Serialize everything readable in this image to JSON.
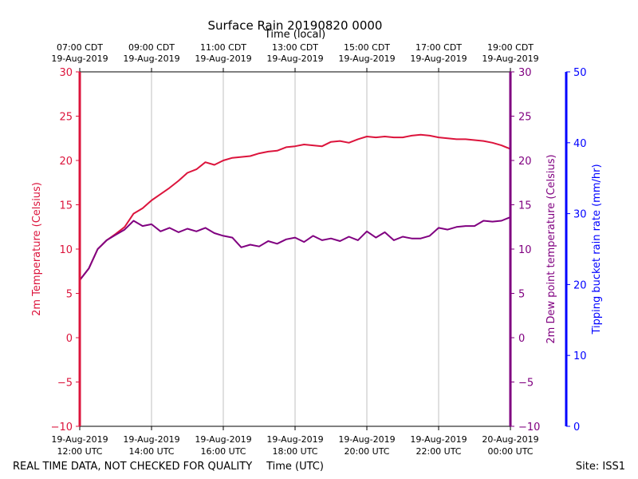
{
  "chart_data": {
    "type": "line",
    "title": "Surface Rain 20190820 0000",
    "top_axis_label": "Time (local)",
    "xlabel": "Time (UTC)",
    "footer_left": "REAL TIME DATA, NOT CHECKED FOR QUALITY",
    "footer_right": "Site: ISS1",
    "x_range_hours_utc": [
      12,
      24
    ],
    "bottom_ticks": [
      {
        "hour": 12,
        "line1": "19-Aug-2019",
        "line2": "12:00 UTC"
      },
      {
        "hour": 14,
        "line1": "19-Aug-2019",
        "line2": "14:00 UTC"
      },
      {
        "hour": 16,
        "line1": "19-Aug-2019",
        "line2": "16:00 UTC"
      },
      {
        "hour": 18,
        "line1": "19-Aug-2019",
        "line2": "18:00 UTC"
      },
      {
        "hour": 20,
        "line1": "19-Aug-2019",
        "line2": "20:00 UTC"
      },
      {
        "hour": 22,
        "line1": "19-Aug-2019",
        "line2": "22:00 UTC"
      },
      {
        "hour": 24,
        "line1": "20-Aug-2019",
        "line2": "00:00 UTC"
      }
    ],
    "top_ticks": [
      {
        "hour": 12,
        "line1": "07:00 CDT",
        "line2": "19-Aug-2019"
      },
      {
        "hour": 14,
        "line1": "09:00 CDT",
        "line2": "19-Aug-2019"
      },
      {
        "hour": 16,
        "line1": "11:00 CDT",
        "line2": "19-Aug-2019"
      },
      {
        "hour": 18,
        "line1": "13:00 CDT",
        "line2": "19-Aug-2019"
      },
      {
        "hour": 20,
        "line1": "15:00 CDT",
        "line2": "19-Aug-2019"
      },
      {
        "hour": 22,
        "line1": "17:00 CDT",
        "line2": "19-Aug-2019"
      },
      {
        "hour": 24,
        "line1": "19:00 CDT",
        "line2": "19-Aug-2019"
      }
    ],
    "axes": {
      "temperature": {
        "label": "2m Temperature (Celsius)",
        "range": [
          -10,
          30
        ],
        "ticks": [
          "−10",
          "−5",
          "0",
          "5",
          "10",
          "15",
          "20",
          "25",
          "30"
        ],
        "color": "#dc143c"
      },
      "dewpoint": {
        "label": "2m Dew point temperature (Celsius)",
        "range": [
          -10,
          30
        ],
        "ticks": [
          "−10",
          "−5",
          "0",
          "5",
          "10",
          "15",
          "20",
          "25",
          "30"
        ],
        "color": "#800080"
      },
      "rain_rate": {
        "label": "Tipping bucket rain rate (mm/hr)",
        "range": [
          0,
          50
        ],
        "ticks": [
          "0",
          "10",
          "20",
          "30",
          "40",
          "50"
        ],
        "color": "#0000ff"
      }
    },
    "series": [
      {
        "name": "2m Temperature",
        "color": "#dc143c",
        "x": [
          12.0,
          12.25,
          12.5,
          12.75,
          13.0,
          13.25,
          13.5,
          13.75,
          14.0,
          14.25,
          14.5,
          14.75,
          15.0,
          15.25,
          15.5,
          15.75,
          16.0,
          16.25,
          16.5,
          16.75,
          17.0,
          17.25,
          17.5,
          17.75,
          18.0,
          18.25,
          18.5,
          18.75,
          19.0,
          19.25,
          19.5,
          19.75,
          20.0,
          20.25,
          20.5,
          20.75,
          21.0,
          21.25,
          21.5,
          21.75,
          22.0,
          22.25,
          22.5,
          22.75,
          23.0,
          23.25,
          23.5,
          23.75,
          24.0
        ],
        "values": [
          6.5,
          7.8,
          10.0,
          11.0,
          11.7,
          12.5,
          14.0,
          14.6,
          15.5,
          16.2,
          16.9,
          17.7,
          18.6,
          19.0,
          19.8,
          19.5,
          20.0,
          20.3,
          20.4,
          20.5,
          20.8,
          21.0,
          21.1,
          21.5,
          21.6,
          21.8,
          21.7,
          21.6,
          22.1,
          22.2,
          22.0,
          22.4,
          22.7,
          22.6,
          22.7,
          22.6,
          22.6,
          22.8,
          22.9,
          22.8,
          22.6,
          22.5,
          22.4,
          22.4,
          22.3,
          22.2,
          22.0,
          21.7,
          21.3
        ]
      },
      {
        "name": "2m Dew point temperature",
        "color": "#800080",
        "x": [
          12.0,
          12.25,
          12.5,
          12.75,
          13.0,
          13.25,
          13.5,
          13.75,
          14.0,
          14.25,
          14.5,
          14.75,
          15.0,
          15.25,
          15.5,
          15.75,
          16.0,
          16.25,
          16.5,
          16.75,
          17.0,
          17.25,
          17.5,
          17.75,
          18.0,
          18.25,
          18.5,
          18.75,
          19.0,
          19.25,
          19.5,
          19.75,
          20.0,
          20.25,
          20.5,
          20.75,
          21.0,
          21.25,
          21.5,
          21.75,
          22.0,
          22.25,
          22.5,
          22.75,
          23.0,
          23.25,
          23.5,
          23.75,
          24.0
        ],
        "values": [
          6.5,
          7.8,
          10.0,
          11.0,
          11.6,
          12.2,
          13.2,
          12.6,
          12.8,
          12.0,
          12.4,
          11.9,
          12.3,
          12.0,
          12.4,
          11.8,
          11.5,
          11.3,
          10.2,
          10.5,
          10.3,
          10.9,
          10.6,
          11.1,
          11.3,
          10.8,
          11.5,
          11.0,
          11.2,
          10.9,
          11.4,
          11.0,
          12.0,
          11.3,
          11.9,
          11.0,
          11.4,
          11.2,
          11.2,
          11.5,
          12.4,
          12.2,
          12.5,
          12.6,
          12.6,
          13.2,
          13.1,
          13.2,
          13.6
        ]
      }
    ]
  }
}
